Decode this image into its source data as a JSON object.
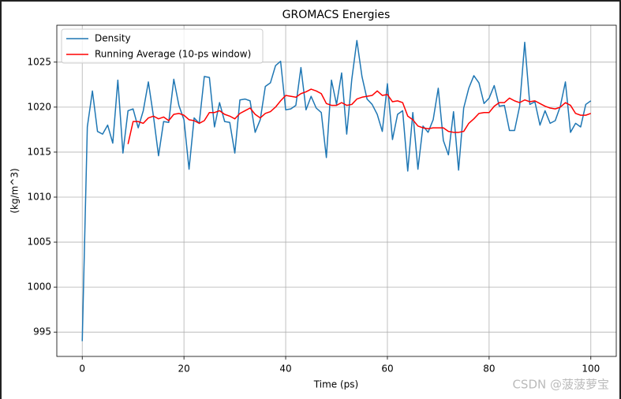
{
  "chart_data": {
    "type": "line",
    "title": "GROMACS Energies",
    "xlabel": "Time (ps)",
    "ylabel": "(kg/m^3)",
    "watermark": "CSDN @菠菠萝宝",
    "x": [
      0,
      1,
      2,
      3,
      4,
      5,
      6,
      7,
      8,
      9,
      10,
      11,
      12,
      13,
      14,
      15,
      16,
      17,
      18,
      19,
      20,
      21,
      22,
      23,
      24,
      25,
      26,
      27,
      28,
      29,
      30,
      31,
      32,
      33,
      34,
      35,
      36,
      37,
      38,
      39,
      40,
      41,
      42,
      43,
      44,
      45,
      46,
      47,
      48,
      49,
      50,
      51,
      52,
      53,
      54,
      55,
      56,
      57,
      58,
      59,
      60,
      61,
      62,
      63,
      64,
      65,
      66,
      67,
      68,
      69,
      70,
      71,
      72,
      73,
      74,
      75,
      76,
      77,
      78,
      79,
      80,
      81,
      82,
      83,
      84,
      85,
      86,
      87,
      88,
      89,
      90,
      91,
      92,
      93,
      94,
      95,
      96,
      97,
      98,
      99,
      100
    ],
    "series": [
      {
        "name": "Density",
        "color": "#1f77b4",
        "values": [
          994.0,
          1017.8,
          1021.8,
          1017.3,
          1017.0,
          1018.0,
          1016.0,
          1023.0,
          1014.9,
          1019.6,
          1019.8,
          1017.7,
          1019.6,
          1022.8,
          1019.0,
          1014.6,
          1018.4,
          1018.3,
          1023.1,
          1020.2,
          1018.6,
          1013.1,
          1018.8,
          1018.2,
          1023.4,
          1023.3,
          1017.8,
          1020.5,
          1018.4,
          1018.3,
          1014.9,
          1020.8,
          1020.9,
          1020.7,
          1017.2,
          1018.6,
          1022.3,
          1022.7,
          1024.6,
          1025.1,
          1019.7,
          1019.8,
          1020.2,
          1024.4,
          1019.7,
          1021.2,
          1019.9,
          1019.4,
          1014.4,
          1023.0,
          1020.3,
          1023.8,
          1017.0,
          1023.1,
          1027.4,
          1023.4,
          1020.9,
          1020.3,
          1019.2,
          1017.3,
          1022.6,
          1016.4,
          1019.2,
          1019.6,
          1012.9,
          1019.4,
          1013.1,
          1017.9,
          1017.2,
          1018.6,
          1022.1,
          1016.3,
          1014.7,
          1019.5,
          1013.0,
          1019.9,
          1022.1,
          1023.5,
          1022.7,
          1020.4,
          1021.0,
          1022.4,
          1020.1,
          1020.2,
          1017.4,
          1017.4,
          1020.1,
          1027.2,
          1020.3,
          1020.6,
          1018.0,
          1019.6,
          1018.2,
          1018.5,
          1020.1,
          1022.8,
          1017.2,
          1018.2,
          1017.8,
          1020.3,
          1020.7
        ]
      },
      {
        "name": "Running Average (10-ps window)",
        "color": "#ff0000",
        "values": [
          null,
          null,
          null,
          null,
          null,
          null,
          null,
          null,
          null,
          1015.9,
          1018.4,
          1018.4,
          1018.2,
          1018.8,
          1019.0,
          1018.7,
          1018.9,
          1018.5,
          1019.2,
          1019.3,
          1019.1,
          1018.6,
          1018.5,
          1018.2,
          1018.5,
          1019.4,
          1019.4,
          1019.6,
          1019.2,
          1019.0,
          1018.7,
          1019.3,
          1019.6,
          1019.9,
          1019.2,
          1018.8,
          1019.3,
          1019.5,
          1020.0,
          1020.7,
          1021.3,
          1021.2,
          1021.1,
          1021.5,
          1021.7,
          1022.0,
          1021.8,
          1021.5,
          1020.4,
          1020.2,
          1020.2,
          1020.5,
          1020.2,
          1020.3,
          1020.9,
          1021.1,
          1021.2,
          1021.3,
          1021.8,
          1021.3,
          1021.4,
          1020.6,
          1020.7,
          1020.5,
          1019.0,
          1018.6,
          1017.9,
          1017.7,
          1017.6,
          1017.7,
          1017.7,
          1017.7,
          1017.3,
          1017.2,
          1017.2,
          1017.3,
          1018.2,
          1018.7,
          1019.3,
          1019.4,
          1019.4,
          1020.1,
          1020.5,
          1020.5,
          1021.0,
          1020.7,
          1020.5,
          1020.8,
          1020.6,
          1020.7,
          1020.4,
          1020.1,
          1019.9,
          1019.8,
          1020.0,
          1020.5,
          1020.2,
          1019.3,
          1019.1,
          1019.1,
          1019.3
        ]
      }
    ],
    "xlim": [
      -5,
      105
    ],
    "ylim": [
      992.3,
      1029.1
    ],
    "xticks": [
      0,
      20,
      40,
      60,
      80,
      100
    ],
    "yticks": [
      995,
      1000,
      1005,
      1010,
      1015,
      1020,
      1025
    ],
    "grid": true,
    "legend": "upper left"
  }
}
